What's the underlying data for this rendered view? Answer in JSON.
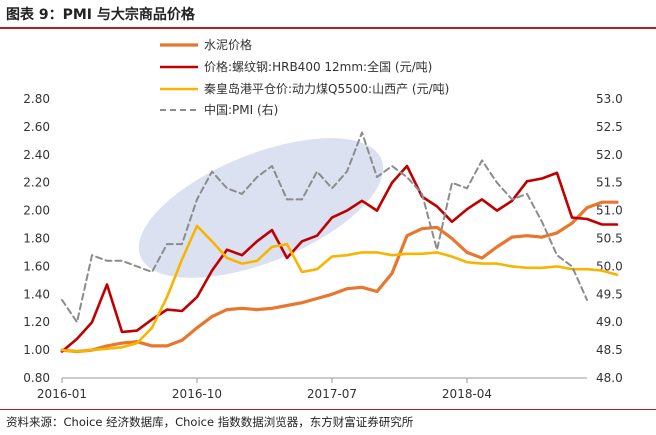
{
  "header": {
    "title": "图表 9：PMI 与大宗商品价格"
  },
  "footer": {
    "source": "资料来源：Choice 经济数据库，Choice 指数数据浏览器，东方财富证券研究所"
  },
  "chart_data": {
    "type": "line",
    "title": "图表 9：PMI 与大宗商品价格",
    "x_ticks": [
      "2016-01",
      "2016-10",
      "2017-07",
      "2018-04"
    ],
    "x_range": [
      "2016-01",
      "2018-12"
    ],
    "ylim_left": [
      0.8,
      2.8
    ],
    "ylim_right": [
      48.0,
      53.0
    ],
    "y_ticks_left": [
      "0.80",
      "1.00",
      "1.20",
      "1.40",
      "1.60",
      "1.80",
      "2.00",
      "2.20",
      "2.40",
      "2.60",
      "2.80"
    ],
    "y_ticks_right": [
      "48.0",
      "48.5",
      "49.0",
      "49.5",
      "50.0",
      "50.5",
      "51.0",
      "51.5",
      "52.0",
      "52.5",
      "53.0"
    ],
    "legend_position": "top",
    "colors": {
      "cement": "#e8762d",
      "rebar": "#c00000",
      "coal": "#f7b500",
      "pmi": "#8c8c8c",
      "highlight": "#d6dcf0"
    },
    "series": [
      {
        "name": "水泥价格",
        "axis": "left",
        "points": [
          [
            "2016-01",
            1.0
          ],
          [
            "2016-02",
            0.99
          ],
          [
            "2016-03",
            1.0
          ],
          [
            "2016-04",
            1.03
          ],
          [
            "2016-05",
            1.05
          ],
          [
            "2016-06",
            1.06
          ],
          [
            "2016-07",
            1.03
          ],
          [
            "2016-08",
            1.03
          ],
          [
            "2016-09",
            1.07
          ],
          [
            "2016-10",
            1.16
          ],
          [
            "2016-11",
            1.24
          ],
          [
            "2016-12",
            1.29
          ],
          [
            "2017-01",
            1.3
          ],
          [
            "2017-02",
            1.29
          ],
          [
            "2017-03",
            1.3
          ],
          [
            "2017-04",
            1.32
          ],
          [
            "2017-05",
            1.34
          ],
          [
            "2017-06",
            1.37
          ],
          [
            "2017-07",
            1.4
          ],
          [
            "2017-08",
            1.44
          ],
          [
            "2017-09",
            1.45
          ],
          [
            "2017-10",
            1.42
          ],
          [
            "2017-11",
            1.55
          ],
          [
            "2017-12",
            1.82
          ],
          [
            "2018-01",
            1.87
          ],
          [
            "2018-02",
            1.88
          ],
          [
            "2018-03",
            1.8
          ],
          [
            "2018-04",
            1.7
          ],
          [
            "2018-05",
            1.66
          ],
          [
            "2018-06",
            1.74
          ],
          [
            "2018-07",
            1.81
          ],
          [
            "2018-08",
            1.82
          ],
          [
            "2018-09",
            1.81
          ],
          [
            "2018-10",
            1.84
          ],
          [
            "2018-11",
            1.91
          ],
          [
            "2018-12",
            2.02
          ],
          [
            "2019-01",
            2.06
          ],
          [
            "2019-02",
            2.06
          ]
        ]
      },
      {
        "name": "价格:螺纹钢:HRB400 12mm:全国 (元/吨)",
        "axis": "left",
        "points": [
          [
            "2016-01",
            0.99
          ],
          [
            "2016-02",
            1.08
          ],
          [
            "2016-03",
            1.2
          ],
          [
            "2016-04",
            1.47
          ],
          [
            "2016-05",
            1.13
          ],
          [
            "2016-06",
            1.14
          ],
          [
            "2016-07",
            1.22
          ],
          [
            "2016-08",
            1.29
          ],
          [
            "2016-09",
            1.28
          ],
          [
            "2016-10",
            1.38
          ],
          [
            "2016-11",
            1.57
          ],
          [
            "2016-12",
            1.72
          ],
          [
            "2017-01",
            1.68
          ],
          [
            "2017-02",
            1.78
          ],
          [
            "2017-03",
            1.86
          ],
          [
            "2017-04",
            1.66
          ],
          [
            "2017-05",
            1.78
          ],
          [
            "2017-06",
            1.82
          ],
          [
            "2017-07",
            1.95
          ],
          [
            "2017-08",
            2.0
          ],
          [
            "2017-09",
            2.07
          ],
          [
            "2017-10",
            2.0
          ],
          [
            "2017-11",
            2.2
          ],
          [
            "2017-12",
            2.32
          ],
          [
            "2018-01",
            2.1
          ],
          [
            "2018-02",
            2.03
          ],
          [
            "2018-03",
            1.92
          ],
          [
            "2018-04",
            2.01
          ],
          [
            "2018-05",
            2.08
          ],
          [
            "2018-06",
            2.0
          ],
          [
            "2018-07",
            2.07
          ],
          [
            "2018-08",
            2.21
          ],
          [
            "2018-09",
            2.23
          ],
          [
            "2018-10",
            2.27
          ],
          [
            "2018-11",
            1.95
          ],
          [
            "2018-12",
            1.94
          ],
          [
            "2019-01",
            1.9
          ],
          [
            "2019-02",
            1.9
          ]
        ]
      },
      {
        "name": "秦皇岛港平仓价:动力煤Q5500:山西产 (元/吨)",
        "axis": "left",
        "points": [
          [
            "2016-01",
            1.0
          ],
          [
            "2016-02",
            0.99
          ],
          [
            "2016-03",
            1.0
          ],
          [
            "2016-04",
            1.01
          ],
          [
            "2016-05",
            1.02
          ],
          [
            "2016-06",
            1.05
          ],
          [
            "2016-07",
            1.16
          ],
          [
            "2016-08",
            1.38
          ],
          [
            "2016-09",
            1.65
          ],
          [
            "2016-10",
            1.89
          ],
          [
            "2016-11",
            1.78
          ],
          [
            "2016-12",
            1.66
          ],
          [
            "2017-01",
            1.62
          ],
          [
            "2017-02",
            1.64
          ],
          [
            "2017-03",
            1.74
          ],
          [
            "2017-04",
            1.76
          ],
          [
            "2017-05",
            1.56
          ],
          [
            "2017-06",
            1.58
          ],
          [
            "2017-07",
            1.67
          ],
          [
            "2017-08",
            1.68
          ],
          [
            "2017-09",
            1.7
          ],
          [
            "2017-10",
            1.7
          ],
          [
            "2017-11",
            1.68
          ],
          [
            "2017-12",
            1.69
          ],
          [
            "2018-01",
            1.69
          ],
          [
            "2018-02",
            1.7
          ],
          [
            "2018-03",
            1.67
          ],
          [
            "2018-04",
            1.63
          ],
          [
            "2018-05",
            1.62
          ],
          [
            "2018-06",
            1.62
          ],
          [
            "2018-07",
            1.6
          ],
          [
            "2018-08",
            1.59
          ],
          [
            "2018-09",
            1.59
          ],
          [
            "2018-10",
            1.6
          ],
          [
            "2018-11",
            1.58
          ],
          [
            "2018-12",
            1.58
          ],
          [
            "2019-01",
            1.57
          ],
          [
            "2019-02",
            1.54
          ]
        ]
      },
      {
        "name": "中国:PMI (右)",
        "axis": "right",
        "points": [
          [
            "2016-01",
            49.4
          ],
          [
            "2016-02",
            49.0
          ],
          [
            "2016-03",
            50.2
          ],
          [
            "2016-04",
            50.1
          ],
          [
            "2016-05",
            50.1
          ],
          [
            "2016-06",
            50.0
          ],
          [
            "2016-07",
            49.9
          ],
          [
            "2016-08",
            50.4
          ],
          [
            "2016-09",
            50.4
          ],
          [
            "2016-10",
            51.2
          ],
          [
            "2016-11",
            51.7
          ],
          [
            "2016-12",
            51.4
          ],
          [
            "2017-01",
            51.3
          ],
          [
            "2017-02",
            51.6
          ],
          [
            "2017-03",
            51.8
          ],
          [
            "2017-04",
            51.2
          ],
          [
            "2017-05",
            51.2
          ],
          [
            "2017-06",
            51.7
          ],
          [
            "2017-07",
            51.4
          ],
          [
            "2017-08",
            51.7
          ],
          [
            "2017-09",
            52.4
          ],
          [
            "2017-10",
            51.6
          ],
          [
            "2017-11",
            51.8
          ],
          [
            "2017-12",
            51.6
          ],
          [
            "2018-01",
            51.3
          ],
          [
            "2018-02",
            50.3
          ],
          [
            "2018-03",
            51.5
          ],
          [
            "2018-04",
            51.4
          ],
          [
            "2018-05",
            51.9
          ],
          [
            "2018-06",
            51.5
          ],
          [
            "2018-07",
            51.2
          ],
          [
            "2018-08",
            51.3
          ],
          [
            "2018-09",
            50.8
          ],
          [
            "2018-10",
            50.2
          ],
          [
            "2018-11",
            50.0
          ],
          [
            "2018-12",
            49.4
          ]
        ]
      }
    ],
    "annotation": "highlighted ellipse region (2016-07 to 2017-09)"
  }
}
